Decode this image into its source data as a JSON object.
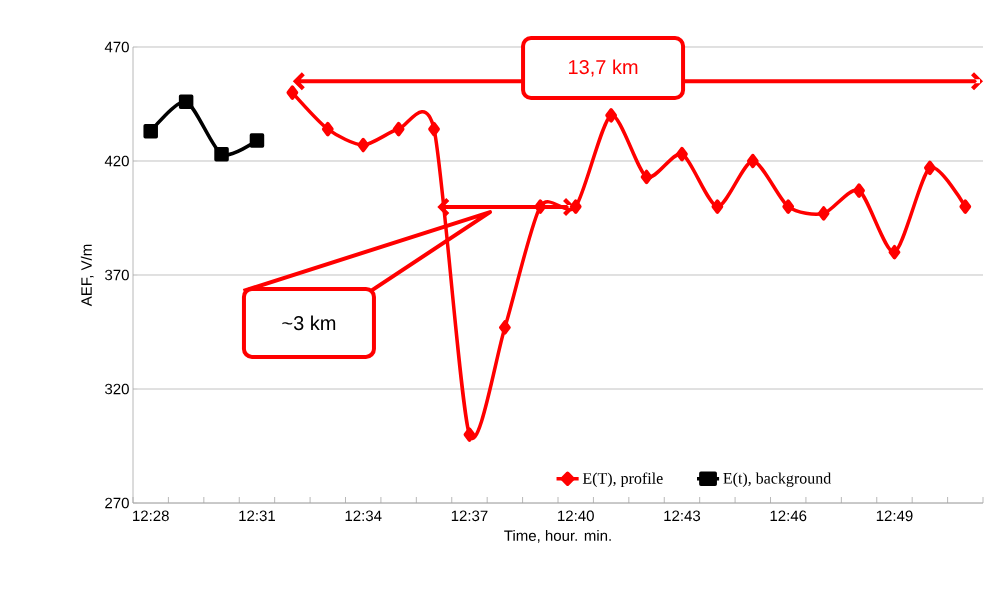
{
  "chart_data": {
    "type": "line",
    "categories": [
      "12:28",
      null,
      null,
      "12:31",
      null,
      null,
      "12:34",
      null,
      null,
      "12:37",
      null,
      null,
      "12:40",
      null,
      null,
      "12:43",
      null,
      null,
      "12:46",
      null,
      null,
      "12:49",
      null,
      null
    ],
    "series": [
      {
        "name": "E(T), profile",
        "color": "#ff0000",
        "marker": "diamond",
        "values": [
          null,
          null,
          null,
          null,
          450,
          434,
          427,
          434,
          434,
          300,
          347,
          400,
          400,
          440,
          413,
          423,
          400,
          420,
          400,
          397,
          407,
          380,
          417,
          400
        ]
      },
      {
        "name": "E(t), background",
        "color": "#000000",
        "marker": "square",
        "values": [
          433,
          446,
          423,
          429,
          null,
          null,
          null,
          null,
          null,
          null,
          null,
          null,
          null,
          null,
          null,
          null,
          null,
          null,
          null,
          null,
          null,
          null,
          null,
          null
        ]
      }
    ],
    "xlabel": "Time, hour. min.",
    "ylabel": "AEF, V/m",
    "ylim": [
      270,
      470
    ],
    "yticks": [
      270,
      320,
      370,
      420,
      470
    ],
    "grid": "y",
    "legend": "bottom",
    "line_style": "solid",
    "annotations": [
      "13,7 km",
      "~3 km"
    ]
  }
}
